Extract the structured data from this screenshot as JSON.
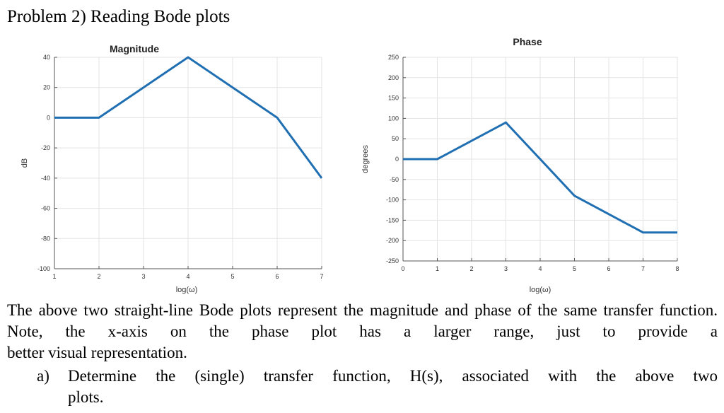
{
  "problem_title": "Problem 2) Reading Bode plots",
  "paragraph_lines": [
    "The above two straight-line Bode plots represent the magnitude and phase of the same",
    "transfer function. Note, the x-axis on the phase plot has a larger range, just to provide a",
    "better visual representation."
  ],
  "question": {
    "marker": "a)",
    "line1": "Determine the (single) transfer function, H(s), associated with the above two",
    "line2": "plots."
  },
  "chart_data": [
    {
      "type": "line",
      "title": "Magnitude",
      "xlabel": "log(ω)",
      "ylabel": "dB",
      "xlim": [
        1,
        7
      ],
      "ylim": [
        -100,
        40
      ],
      "xticks": [
        1,
        2,
        3,
        4,
        5,
        6,
        7
      ],
      "yticks": [
        -100,
        -80,
        -60,
        -40,
        -20,
        0,
        20,
        40
      ],
      "grid": true,
      "line_color": "#1f6fb2",
      "series": [
        {
          "x": [
            1,
            2,
            4,
            6,
            7
          ],
          "values": [
            0,
            0,
            40,
            0,
            -40
          ]
        }
      ]
    },
    {
      "type": "line",
      "title": "Phase",
      "xlabel": "log(ω)",
      "ylabel": "degrees",
      "xlim": [
        0,
        8
      ],
      "ylim": [
        -250,
        250
      ],
      "xticks": [
        0,
        1,
        2,
        3,
        4,
        5,
        6,
        7,
        8
      ],
      "yticks": [
        -250,
        -200,
        -150,
        -100,
        -50,
        0,
        50,
        100,
        150,
        200,
        250
      ],
      "grid": true,
      "line_color": "#1f6fb2",
      "series": [
        {
          "x": [
            0,
            1,
            3,
            5,
            7,
            8
          ],
          "values": [
            0,
            0,
            90,
            -90,
            -180,
            -180
          ]
        }
      ]
    }
  ]
}
